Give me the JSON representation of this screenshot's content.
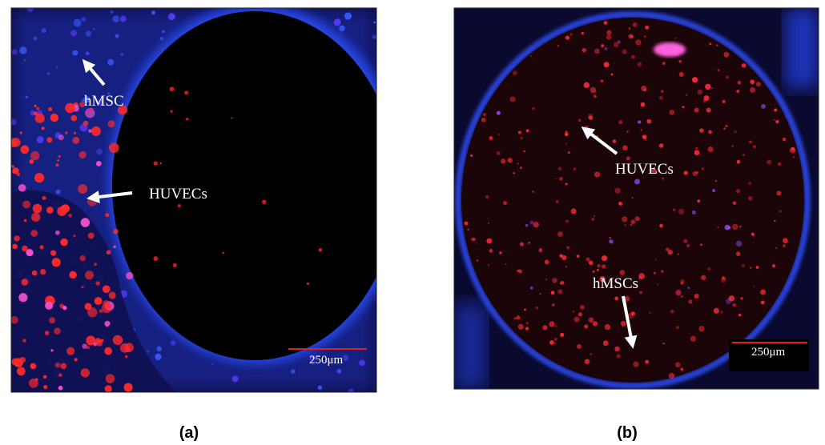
{
  "panels": [
    {
      "label": "(a)",
      "annotations": [
        "hMSC",
        "HUVECs"
      ],
      "scale_bar": "250μm"
    },
    {
      "label": "(b)",
      "annotations": [
        "HUVECs",
        "hMSCs"
      ],
      "scale_bar": "250μm"
    }
  ]
}
